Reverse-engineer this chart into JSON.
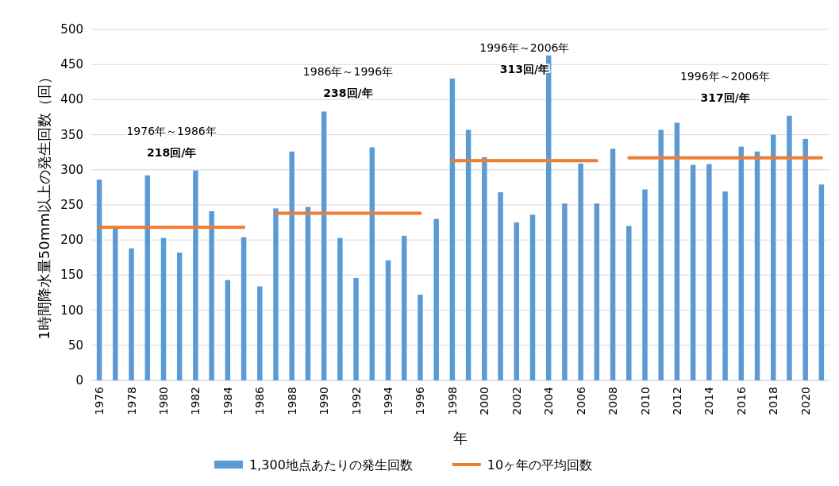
{
  "chart_data": {
    "type": "bar",
    "categories": [
      "1976",
      null,
      "1978",
      null,
      "1980",
      null,
      "1982",
      null,
      "1984",
      null,
      "1986",
      null,
      "1988",
      null,
      "1990",
      null,
      "1992",
      null,
      "1994",
      null,
      "1996",
      null,
      "1998",
      null,
      "2000",
      null,
      "2002",
      null,
      "2004",
      null,
      "2006",
      null,
      "2008",
      null,
      "2010",
      null,
      "2012",
      null,
      "2014",
      null,
      "2016",
      null,
      "2018",
      null,
      "2020",
      null
    ],
    "series": [
      {
        "name": "1,300地点あたりの発生回数",
        "color": "#5b9bd5",
        "values": [
          286,
          216,
          188,
          292,
          203,
          182,
          299,
          241,
          143,
          204,
          134,
          245,
          326,
          247,
          383,
          203,
          146,
          332,
          171,
          206,
          122,
          230,
          430,
          357,
          318,
          268,
          225,
          236,
          463,
          252,
          309,
          252,
          330,
          220,
          272,
          357,
          367,
          307,
          308,
          269,
          333,
          326,
          350,
          377,
          344,
          279
        ]
      },
      {
        "name": "10ヶ年の平均回数",
        "type": "line",
        "color": "#ed7d31",
        "values": [
          218,
          218,
          218,
          218,
          218,
          218,
          218,
          218,
          218,
          218,
          null,
          238,
          238,
          238,
          238,
          238,
          238,
          238,
          238,
          238,
          238,
          null,
          313,
          313,
          313,
          313,
          313,
          313,
          313,
          313,
          313,
          313,
          null,
          317,
          317,
          317,
          317,
          317,
          317,
          317,
          317,
          317,
          317,
          317,
          317,
          317
        ]
      }
    ],
    "ylim": [
      0,
      500
    ],
    "yticks": [
      0,
      50,
      100,
      150,
      200,
      250,
      300,
      350,
      400,
      450,
      500
    ],
    "xlabel": "年",
    "ylabel": "1時間降水量50mm以上の発生回数（回）",
    "annotations": [
      "1976年～1986年",
      "218回/年",
      "1986年～1996年",
      "238回/年",
      "1996年～2006年",
      "313回/年",
      "1996年～2006年",
      "317回/年"
    ],
    "grid": "y",
    "legend": "bottom"
  }
}
